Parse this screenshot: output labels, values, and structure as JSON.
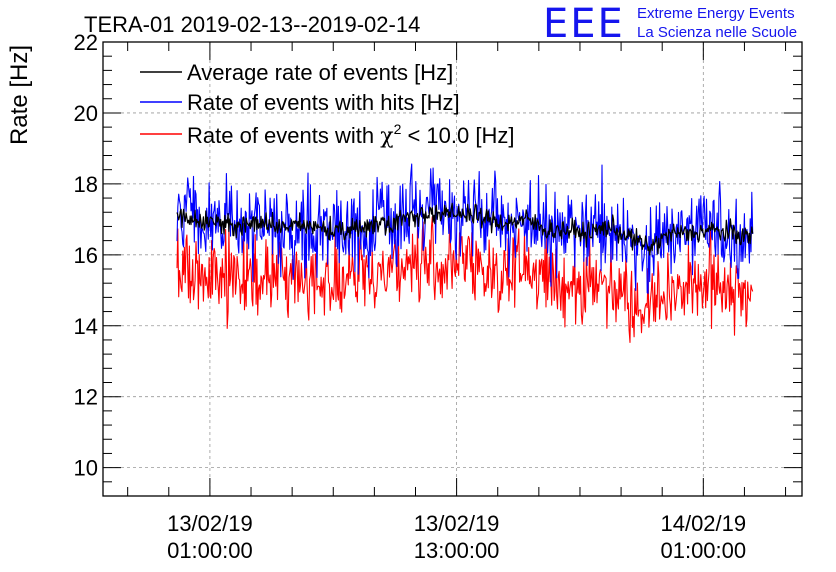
{
  "chart_data": {
    "type": "line",
    "title": "TERA-01 2019-02-13--2019-02-14",
    "ylabel": "Rate [Hz]",
    "xlabel": "",
    "ylim": [
      9.2,
      22
    ],
    "y_ticks": [
      10,
      12,
      14,
      16,
      18,
      20,
      22
    ],
    "x_range_hours": [
      -5.2,
      28.8
    ],
    "x_ticks": [
      {
        "hours": 0,
        "date": "13/02/19",
        "time": "01:00:00"
      },
      {
        "hours": 12,
        "date": "13/02/19",
        "time": "13:00:00"
      },
      {
        "hours": 24,
        "date": "14/02/19",
        "time": "01:00:00"
      }
    ],
    "grid": true,
    "legend_position": "top-left",
    "data_start_hours": -1.6,
    "data_end_hours": 26.4,
    "series": [
      {
        "name": "Average rate of events [Hz]",
        "color": "#000000",
        "profile": [
          17.1,
          17.0,
          16.9,
          16.8,
          16.9,
          16.8,
          16.8,
          16.8,
          16.6,
          16.8,
          16.9,
          17.0,
          17.2,
          17.1,
          17.2,
          17.0,
          16.9,
          17.0,
          16.7,
          16.7,
          16.6,
          16.8,
          16.5,
          16.2,
          16.6,
          16.6,
          16.7,
          16.6,
          16.5
        ],
        "noise": 0.15
      },
      {
        "name": "Rate of events with hits [Hz]",
        "color": "#0000ff",
        "profile": [
          17.1,
          17.0,
          16.9,
          16.8,
          16.9,
          16.8,
          16.8,
          16.8,
          16.6,
          16.8,
          16.9,
          17.0,
          17.2,
          17.1,
          17.2,
          17.0,
          16.9,
          17.0,
          16.7,
          16.7,
          16.6,
          16.8,
          16.5,
          16.2,
          16.6,
          16.6,
          16.7,
          16.6,
          16.5
        ],
        "noise": 0.6
      },
      {
        "name": "Rate of events with χ² < 10.0 [Hz]",
        "legend_parts": [
          "Rate of events with ",
          "χ",
          "2",
          " < 10.0 [Hz]"
        ],
        "color": "#ff0000",
        "profile": [
          15.5,
          15.6,
          15.5,
          15.4,
          15.3,
          15.4,
          15.3,
          15.4,
          15.2,
          15.4,
          15.6,
          15.7,
          15.8,
          15.7,
          15.8,
          15.6,
          15.5,
          15.6,
          15.3,
          15.2,
          15.1,
          15.3,
          14.8,
          14.6,
          15.0,
          15.1,
          15.2,
          15.1,
          15.0
        ],
        "noise": 0.55
      }
    ]
  },
  "logo": {
    "mark": "EEE",
    "line1": "Extreme Energy Events",
    "line2": "La Scienza nelle Scuole"
  }
}
